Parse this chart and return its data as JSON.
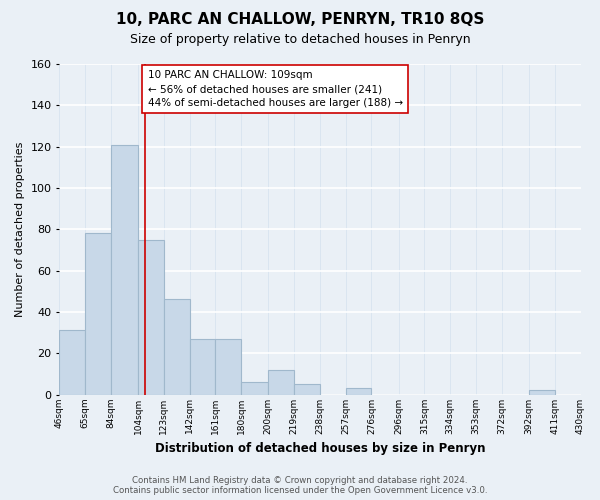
{
  "title": "10, PARC AN CHALLOW, PENRYN, TR10 8QS",
  "subtitle": "Size of property relative to detached houses in Penryn",
  "xlabel": "Distribution of detached houses by size in Penryn",
  "ylabel": "Number of detached properties",
  "bar_values": [
    31,
    78,
    121,
    75,
    46,
    27,
    27,
    6,
    12,
    5,
    0,
    3,
    0,
    0,
    0,
    0,
    0,
    0,
    2,
    0
  ],
  "bar_labels": [
    "46sqm",
    "65sqm",
    "84sqm",
    "104sqm",
    "123sqm",
    "142sqm",
    "161sqm",
    "180sqm",
    "200sqm",
    "219sqm",
    "238sqm",
    "257sqm",
    "276sqm",
    "296sqm",
    "315sqm",
    "334sqm",
    "353sqm",
    "372sqm",
    "392sqm",
    "411sqm",
    "430sqm"
  ],
  "bar_left_edges": [
    46,
    65,
    84,
    104,
    123,
    142,
    161,
    180,
    200,
    219,
    238,
    257,
    276,
    296,
    315,
    334,
    353,
    372,
    392,
    411
  ],
  "all_tick_positions": [
    46,
    65,
    84,
    104,
    123,
    142,
    161,
    180,
    200,
    219,
    238,
    257,
    276,
    296,
    315,
    334,
    353,
    372,
    392,
    411,
    430
  ],
  "bar_color": "#c8d8e8",
  "bar_edge_color": "#a0b8cc",
  "property_value": 109,
  "property_line_color": "#cc0000",
  "ylim": [
    0,
    160
  ],
  "yticks": [
    0,
    20,
    40,
    60,
    80,
    100,
    120,
    140,
    160
  ],
  "annotation_title": "10 PARC AN CHALLOW: 109sqm",
  "annotation_line1": "← 56% of detached houses are smaller (241)",
  "annotation_line2": "44% of semi-detached houses are larger (188) →",
  "annotation_box_color": "#ffffff",
  "annotation_box_edge": "#cc0000",
  "footer_line1": "Contains HM Land Registry data © Crown copyright and database right 2024.",
  "footer_line2": "Contains public sector information licensed under the Open Government Licence v3.0.",
  "background_color": "#eaf0f6",
  "grid_color": "#d0dce8"
}
